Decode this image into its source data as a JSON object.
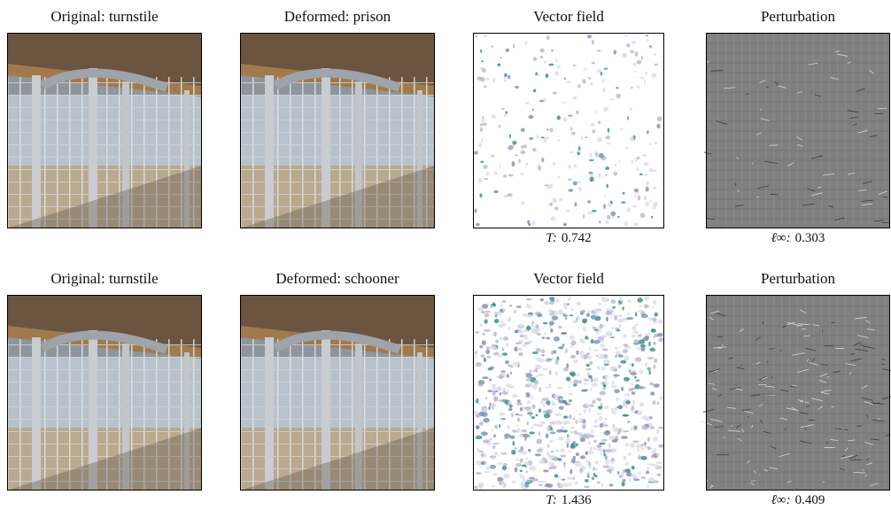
{
  "figure": {
    "rows": [
      {
        "panels": [
          {
            "title": "Original: turnstile",
            "kind": "photo"
          },
          {
            "title": "Deformed: prison",
            "kind": "photo"
          },
          {
            "title": "Vector field",
            "kind": "field",
            "caption": {
              "label": "T:",
              "value": 0.742
            }
          },
          {
            "title": "Perturbation",
            "kind": "perturbation",
            "caption": {
              "label": "ℓ∞:",
              "value": 0.303
            }
          }
        ]
      },
      {
        "panels": [
          {
            "title": "Original: turnstile",
            "kind": "photo"
          },
          {
            "title": "Deformed: schooner",
            "kind": "photo"
          },
          {
            "title": "Vector field",
            "kind": "field",
            "caption": {
              "label": "T:",
              "value": 1.436
            }
          },
          {
            "title": "Perturbation",
            "kind": "perturbation",
            "caption": {
              "label": "ℓ∞:",
              "value": 0.409
            }
          }
        ]
      }
    ]
  }
}
